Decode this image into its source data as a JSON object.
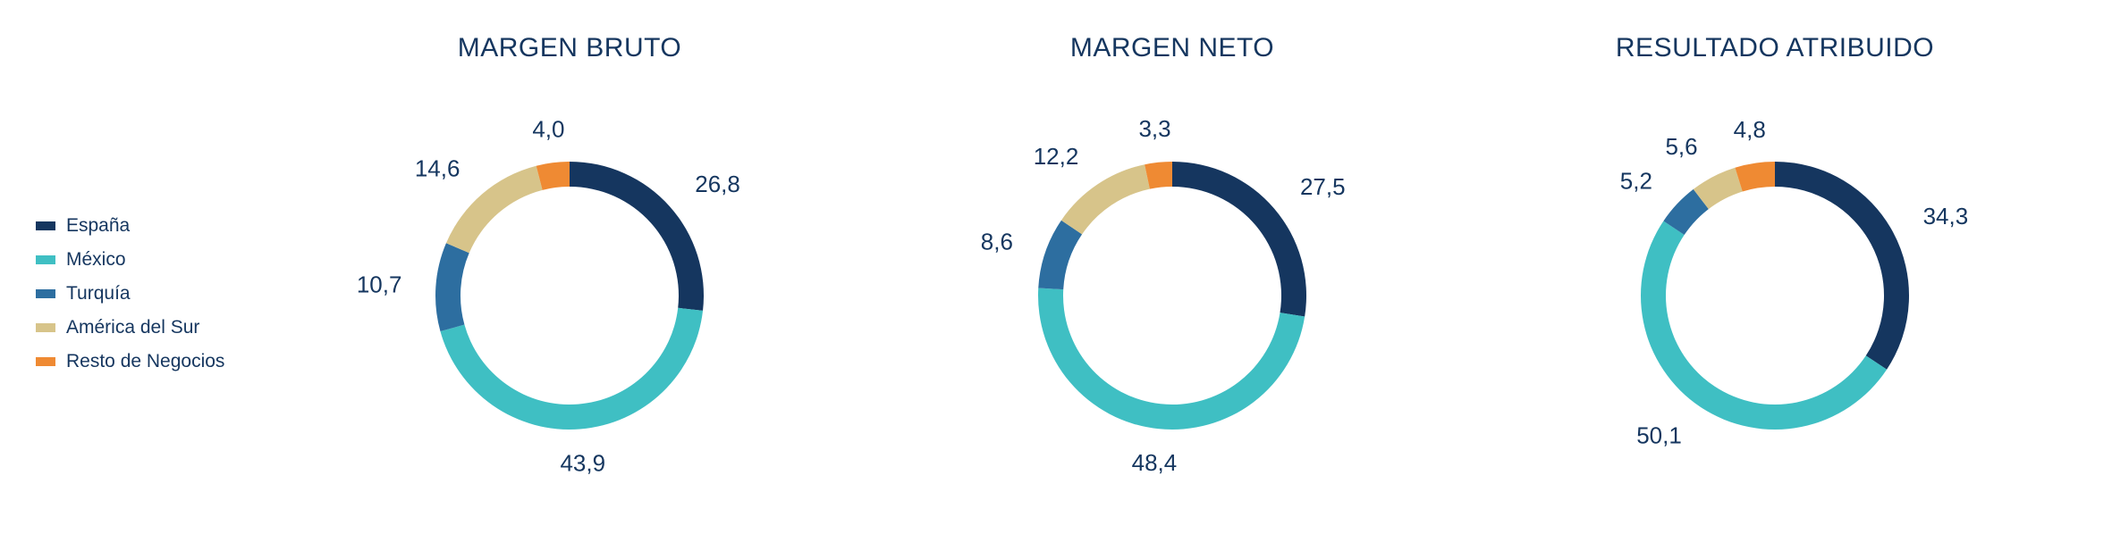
{
  "palette": {
    "background": "#ffffff",
    "text": "#15365f"
  },
  "legend": [
    {
      "key": "espana",
      "label": "España",
      "color": "#15365f"
    },
    {
      "key": "mexico",
      "label": "México",
      "color": "#3fbfc3"
    },
    {
      "key": "turquia",
      "label": "Turquía",
      "color": "#2d6ea0"
    },
    {
      "key": "amsur",
      "label": "América del Sur",
      "color": "#d7c48a"
    },
    {
      "key": "resto",
      "label": "Resto de Negocios",
      "color": "#ef8a33"
    }
  ],
  "chart_style": {
    "type": "donut",
    "outer_radius": 150,
    "inner_radius": 122,
    "svg_size": 460,
    "title_fontsize": 30,
    "label_fontsize": 26,
    "start_angle_deg": 0,
    "decimal_separator": ","
  },
  "charts": [
    {
      "id": "margen-bruto",
      "title": "MARGEN BRUTO",
      "slices": [
        {
          "key": "espana",
          "value": 26.8
        },
        {
          "key": "mexico",
          "value": 43.9
        },
        {
          "key": "turquia",
          "value": 10.7
        },
        {
          "key": "amsur",
          "value": 14.6
        },
        {
          "key": "resto",
          "value": 4.0
        }
      ]
    },
    {
      "id": "margen-neto",
      "title": "MARGEN NETO",
      "slices": [
        {
          "key": "espana",
          "value": 27.5
        },
        {
          "key": "mexico",
          "value": 48.4
        },
        {
          "key": "turquia",
          "value": 8.6
        },
        {
          "key": "amsur",
          "value": 12.2
        },
        {
          "key": "resto",
          "value": 3.3
        }
      ]
    },
    {
      "id": "resultado-atribuido",
      "title": "RESULTADO ATRIBUIDO",
      "slices": [
        {
          "key": "espana",
          "value": 34.3
        },
        {
          "key": "mexico",
          "value": 50.1
        },
        {
          "key": "turquia",
          "value": 5.2
        },
        {
          "key": "amsur",
          "value": 5.6
        },
        {
          "key": "resto",
          "value": 4.8
        }
      ]
    }
  ]
}
